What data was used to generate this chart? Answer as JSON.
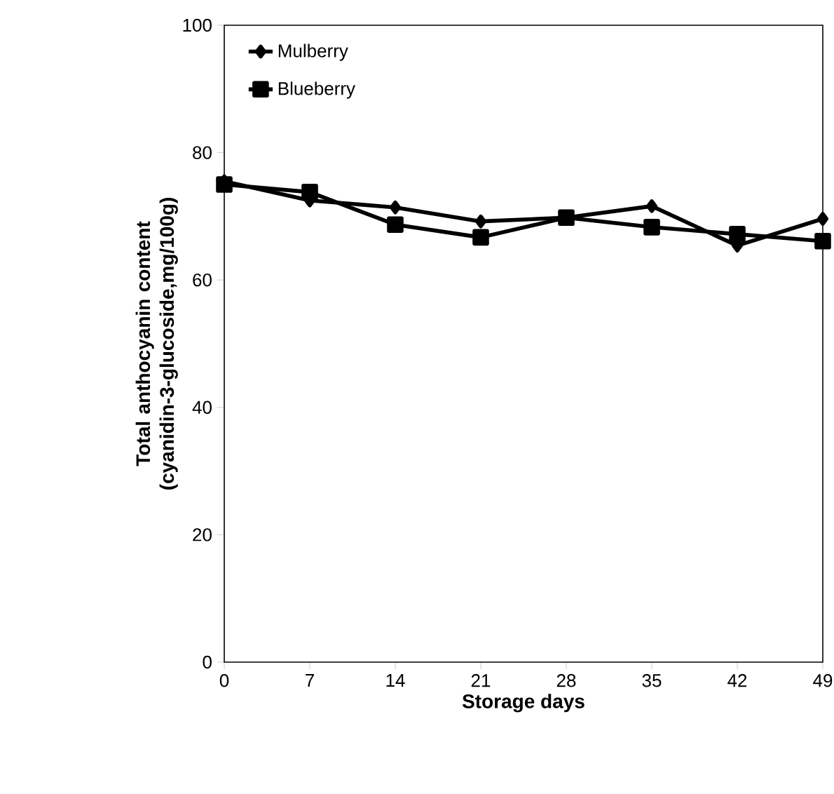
{
  "chart_data": {
    "type": "line",
    "xlabel": "Storage days",
    "ylabel": "Total anthocyanin content (cyanidin-3-glucoside,mg/100g)",
    "x": [
      0,
      7,
      14,
      21,
      28,
      35,
      42,
      49
    ],
    "series": [
      {
        "name": "Mulberry",
        "color": "#000000",
        "marker": "diamond",
        "values": [
          75.5,
          72.5,
          71.4,
          69.2,
          69.8,
          71.6,
          65.4,
          69.6
        ]
      },
      {
        "name": "Blueberry",
        "color": "#000000",
        "marker": "square",
        "values": [
          75.0,
          73.8,
          68.7,
          66.7,
          69.8,
          68.3,
          67.2,
          66.1
        ]
      }
    ],
    "xlim": [
      0,
      49
    ],
    "xticks": [
      0,
      7,
      14,
      21,
      28,
      35,
      42,
      49
    ],
    "ylim": [
      0,
      100
    ],
    "yticks": [
      0,
      20,
      40,
      60,
      80,
      100
    ],
    "grid": false,
    "legend": "top left",
    "line_style": "solid"
  }
}
